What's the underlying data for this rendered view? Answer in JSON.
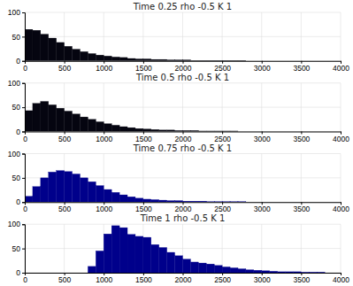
{
  "chart_data": [
    {
      "type": "histogram",
      "title": "Time 0.25 rho -0.5 K 1",
      "bins": [
        0,
        100,
        200,
        300,
        400,
        500,
        600,
        700,
        800,
        900,
        1000,
        1100,
        1200,
        1300,
        1400,
        1500,
        1600,
        1700,
        1800,
        1900,
        2000,
        2100,
        2200,
        2300,
        2400,
        2500,
        2600,
        2700,
        2800,
        2900,
        3000,
        3100,
        3200,
        3300,
        3400,
        3500,
        3600,
        3700,
        3800,
        3900,
        4000
      ],
      "values": [
        65,
        63,
        55,
        47,
        38,
        30,
        24,
        19,
        15,
        12,
        10,
        8,
        7,
        5,
        4,
        4,
        3,
        3,
        2,
        2,
        2,
        1,
        1,
        1,
        1,
        1,
        1,
        1,
        0,
        0,
        0,
        0,
        0,
        0,
        0,
        0,
        0,
        0,
        0,
        0
      ],
      "color": "#050510",
      "xlim": [
        0,
        4000
      ],
      "xticks": [
        0,
        500,
        1000,
        1500,
        2000,
        2500,
        3000,
        3500,
        4000
      ],
      "ylim": [
        0,
        100
      ],
      "yticks": [
        0,
        50,
        100
      ],
      "grid": true
    },
    {
      "type": "histogram",
      "title": "Time 0.5 rho -0.5 K 1",
      "bins": [
        0,
        100,
        200,
        300,
        400,
        500,
        600,
        700,
        800,
        900,
        1000,
        1100,
        1200,
        1300,
        1400,
        1500,
        1600,
        1700,
        1800,
        1900,
        2000,
        2100,
        2200,
        2300,
        2400,
        2500,
        2600,
        2700,
        2800,
        2900,
        3000,
        3100,
        3200,
        3300,
        3400,
        3500,
        3600,
        3700,
        3800,
        3900,
        4000
      ],
      "values": [
        43,
        58,
        62,
        55,
        48,
        42,
        36,
        30,
        25,
        20,
        16,
        13,
        10,
        8,
        6,
        5,
        4,
        3,
        3,
        2,
        2,
        2,
        1,
        1,
        1,
        1,
        1,
        0,
        0,
        0,
        0,
        0,
        0,
        0,
        0,
        0,
        0,
        0,
        0,
        0
      ],
      "color": "#050510",
      "xlim": [
        0,
        4000
      ],
      "xticks": [
        0,
        500,
        1000,
        1500,
        2000,
        2500,
        3000,
        3500,
        4000
      ],
      "ylim": [
        0,
        100
      ],
      "yticks": [
        0,
        50,
        100
      ],
      "grid": true
    },
    {
      "type": "histogram",
      "title": "Time 0.75 rho -0.5 K 1",
      "bins": [
        0,
        100,
        200,
        300,
        400,
        500,
        600,
        700,
        800,
        900,
        1000,
        1100,
        1200,
        1300,
        1400,
        1500,
        1600,
        1700,
        1800,
        1900,
        2000,
        2100,
        2200,
        2300,
        2400,
        2500,
        2600,
        2700,
        2800,
        2900,
        3000,
        3100,
        3200,
        3300,
        3400,
        3500,
        3600,
        3700,
        3800,
        3900,
        4000
      ],
      "values": [
        12,
        32,
        50,
        62,
        65,
        63,
        58,
        50,
        42,
        34,
        26,
        20,
        15,
        11,
        8,
        6,
        5,
        4,
        3,
        3,
        2,
        2,
        2,
        1,
        1,
        1,
        1,
        1,
        0,
        0,
        0,
        0,
        0,
        0,
        0,
        0,
        0,
        0,
        0,
        0
      ],
      "color": "#00008B",
      "xlim": [
        0,
        4000
      ],
      "xticks": [
        0,
        500,
        1000,
        1500,
        2000,
        2500,
        3000,
        3500,
        4000
      ],
      "ylim": [
        0,
        100
      ],
      "yticks": [
        0,
        50,
        100
      ],
      "grid": true
    },
    {
      "type": "histogram",
      "title": "Time 1 rho -0.5 K 1",
      "bins": [
        0,
        100,
        200,
        300,
        400,
        500,
        600,
        700,
        800,
        900,
        1000,
        1100,
        1200,
        1300,
        1400,
        1500,
        1600,
        1700,
        1800,
        1900,
        2000,
        2100,
        2200,
        2300,
        2400,
        2500,
        2600,
        2700,
        2800,
        2900,
        3000,
        3100,
        3200,
        3300,
        3400,
        3500,
        3600,
        3700,
        3800,
        3900,
        4000
      ],
      "values": [
        0,
        0,
        0,
        0,
        0,
        0,
        0,
        0,
        13,
        45,
        80,
        97,
        93,
        79,
        75,
        73,
        58,
        52,
        42,
        35,
        28,
        22,
        20,
        18,
        15,
        12,
        10,
        8,
        6,
        5,
        4,
        3,
        2,
        2,
        2,
        1,
        1,
        1,
        0,
        0
      ],
      "color": "#00008B",
      "xlim": [
        0,
        4000
      ],
      "xticks": [
        0,
        500,
        1000,
        1500,
        2000,
        2500,
        3000,
        3500,
        4000
      ],
      "ylim": [
        0,
        100
      ],
      "yticks": [
        0,
        50,
        100
      ],
      "grid": true
    }
  ]
}
